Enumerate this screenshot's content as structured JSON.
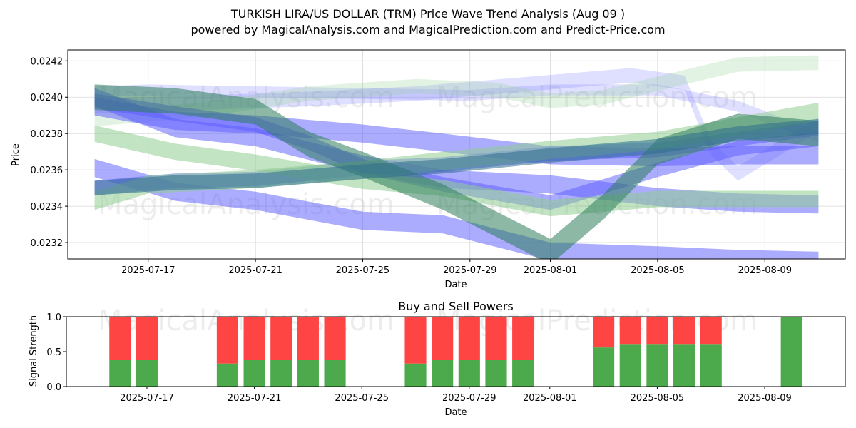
{
  "chart_data": [
    {
      "type": "area",
      "title": "TURKISH LIRA/US DOLLAR (TRM) Price Wave Trend Analysis (Aug 09 )",
      "subtitle": "powered by MagicalAnalysis.com and MagicalPrediction.com and Predict-Price.com",
      "xlabel": "Date",
      "ylabel": "Price",
      "x_tick_labels": [
        "2025-07-17",
        "2025-07-21",
        "2025-07-25",
        "2025-07-29",
        "2025-08-01",
        "2025-08-05",
        "2025-08-09"
      ],
      "y_tick_labels": [
        "0.0232",
        "0.0234",
        "0.0236",
        "0.0238",
        "0.0240",
        "0.0242"
      ],
      "xlim": [
        "2025-07-14",
        "2025-08-12"
      ],
      "ylim": [
        0.02311,
        0.02426
      ],
      "grid": true,
      "watermarks": [
        "MagicalAnalysis.com",
        "MagicalPrediction.com"
      ],
      "series": [
        {
          "color": "#8080ff",
          "opacity": 0.25,
          "band": 6e-05,
          "points": [
            [
              "2025-07-15",
              0.02403
            ],
            [
              "2025-07-17",
              0.02404
            ],
            [
              "2025-07-21",
              0.02403
            ],
            [
              "2025-07-25",
              0.02402
            ],
            [
              "2025-07-29",
              0.02401
            ],
            [
              "2025-08-01",
              0.02404
            ],
            [
              "2025-08-05",
              0.02404
            ],
            [
              "2025-08-08",
              0.02395
            ],
            [
              "2025-08-11",
              0.02378
            ]
          ]
        },
        {
          "color": "#8080ff",
          "opacity": 0.25,
          "band": 8e-05,
          "points": [
            [
              "2025-07-15",
              0.02395
            ],
            [
              "2025-07-19",
              0.02397
            ],
            [
              "2025-07-23",
              0.02399
            ],
            [
              "2025-07-27",
              0.02402
            ],
            [
              "2025-07-31",
              0.02407
            ],
            [
              "2025-08-04",
              0.02412
            ],
            [
              "2025-08-06",
              0.02408
            ],
            [
              "2025-08-07",
              0.02372
            ],
            [
              "2025-08-08",
              0.02358
            ],
            [
              "2025-08-11",
              0.02385
            ]
          ]
        },
        {
          "color": "#8fce8f",
          "opacity": 0.25,
          "band": 8e-05,
          "points": [
            [
              "2025-07-15",
              0.02388
            ],
            [
              "2025-07-19",
              0.02393
            ],
            [
              "2025-07-23",
              0.02402
            ],
            [
              "2025-07-27",
              0.02406
            ],
            [
              "2025-07-30",
              0.02404
            ],
            [
              "2025-08-01",
              0.02398
            ],
            [
              "2025-08-03",
              0.024
            ],
            [
              "2025-08-06",
              0.02411
            ],
            [
              "2025-08-08",
              0.02418
            ],
            [
              "2025-08-11",
              0.02419
            ]
          ]
        },
        {
          "color": "#5a5aff",
          "opacity": 0.5,
          "band": 0.0001,
          "points": [
            [
              "2025-07-15",
              0.024
            ],
            [
              "2025-07-18",
              0.02383
            ],
            [
              "2025-07-21",
              0.02378
            ],
            [
              "2025-07-25",
              0.02363
            ],
            [
              "2025-07-28",
              0.02355
            ],
            [
              "2025-08-01",
              0.02352
            ],
            [
              "2025-08-05",
              0.02345
            ],
            [
              "2025-08-08",
              0.02342
            ],
            [
              "2025-08-11",
              0.02341
            ]
          ]
        },
        {
          "color": "#5a5aff",
          "opacity": 0.5,
          "band": 0.0001,
          "points": [
            [
              "2025-07-15",
              0.02395
            ],
            [
              "2025-07-18",
              0.02387
            ],
            [
              "2025-07-21",
              0.02385
            ],
            [
              "2025-07-25",
              0.0238
            ],
            [
              "2025-07-28",
              0.02375
            ],
            [
              "2025-08-01",
              0.02368
            ],
            [
              "2025-08-05",
              0.02367
            ],
            [
              "2025-08-08",
              0.02368
            ],
            [
              "2025-08-11",
              0.02368
            ]
          ]
        },
        {
          "color": "#5a5aff",
          "opacity": 0.5,
          "band": 0.0001,
          "points": [
            [
              "2025-07-15",
              0.02361
            ],
            [
              "2025-07-18",
              0.02348
            ],
            [
              "2025-07-21",
              0.02343
            ],
            [
              "2025-07-25",
              0.02332
            ],
            [
              "2025-07-28",
              0.0233
            ],
            [
              "2025-08-01",
              0.02315
            ],
            [
              "2025-08-05",
              0.02313
            ],
            [
              "2025-08-08",
              0.02311
            ],
            [
              "2025-08-11",
              0.0231
            ]
          ]
        },
        {
          "color": "#5a5aff",
          "opacity": 0.5,
          "band": 8e-05,
          "points": [
            [
              "2025-07-15",
              0.02398
            ],
            [
              "2025-07-18",
              0.02391
            ],
            [
              "2025-07-21",
              0.02385
            ],
            [
              "2025-07-23",
              0.02375
            ],
            [
              "2025-07-25",
              0.02362
            ],
            [
              "2025-07-28",
              0.02352
            ],
            [
              "2025-08-01",
              0.02342
            ],
            [
              "2025-08-05",
              0.0236
            ],
            [
              "2025-08-08",
              0.02372
            ],
            [
              "2025-08-11",
              0.02377
            ]
          ]
        },
        {
          "color": "#5a5aff",
          "opacity": 0.5,
          "band": 8e-05,
          "points": [
            [
              "2025-07-15",
              0.0235
            ],
            [
              "2025-07-18",
              0.02354
            ],
            [
              "2025-07-21",
              0.02355
            ],
            [
              "2025-07-25",
              0.02361
            ],
            [
              "2025-07-28",
              0.02363
            ],
            [
              "2025-08-01",
              0.02369
            ],
            [
              "2025-08-05",
              0.02371
            ],
            [
              "2025-08-08",
              0.02377
            ],
            [
              "2025-08-11",
              0.02383
            ]
          ]
        },
        {
          "color": "#8fce8f",
          "opacity": 0.55,
          "band": 9e-05,
          "points": [
            [
              "2025-07-15",
              0.0238
            ],
            [
              "2025-07-18",
              0.0237
            ],
            [
              "2025-07-21",
              0.02364
            ],
            [
              "2025-07-25",
              0.02354
            ],
            [
              "2025-07-28",
              0.0235
            ],
            [
              "2025-08-01",
              0.02339
            ],
            [
              "2025-08-05",
              0.02344
            ],
            [
              "2025-08-08",
              0.02344
            ],
            [
              "2025-08-11",
              0.02344
            ]
          ]
        },
        {
          "color": "#8fce8f",
          "opacity": 0.55,
          "band": 0.0001,
          "points": [
            [
              "2025-07-15",
              0.02343
            ],
            [
              "2025-07-17",
              0.02352
            ],
            [
              "2025-07-21",
              0.02355
            ],
            [
              "2025-07-25",
              0.0236
            ],
            [
              "2025-07-28",
              0.02365
            ],
            [
              "2025-08-01",
              0.02371
            ],
            [
              "2025-08-05",
              0.02376
            ],
            [
              "2025-08-08",
              0.02384
            ],
            [
              "2025-08-11",
              0.02392
            ]
          ]
        },
        {
          "color": "#2e7d5b",
          "opacity": 0.55,
          "band": 0.00014,
          "points": [
            [
              "2025-07-15",
              0.024
            ],
            [
              "2025-07-18",
              0.02398
            ],
            [
              "2025-07-21",
              0.02392
            ],
            [
              "2025-07-23",
              0.02374
            ],
            [
              "2025-07-25",
              0.02363
            ],
            [
              "2025-07-28",
              0.02345
            ],
            [
              "2025-07-30",
              0.0233
            ],
            [
              "2025-08-01",
              0.02315
            ],
            [
              "2025-08-03",
              0.0234
            ],
            [
              "2025-08-05",
              0.0237
            ],
            [
              "2025-08-08",
              0.02384
            ],
            [
              "2025-08-11",
              0.0238
            ]
          ]
        },
        {
          "color": "#2e6e8e",
          "opacity": 0.55,
          "band": 8e-05,
          "points": [
            [
              "2025-07-15",
              0.0235
            ],
            [
              "2025-07-18",
              0.02353
            ],
            [
              "2025-07-21",
              0.02354
            ],
            [
              "2025-07-25",
              0.02359
            ],
            [
              "2025-07-28",
              0.02362
            ],
            [
              "2025-08-01",
              0.02368
            ],
            [
              "2025-08-05",
              0.02373
            ],
            [
              "2025-08-08",
              0.0238
            ],
            [
              "2025-08-11",
              0.02384
            ]
          ]
        }
      ]
    },
    {
      "type": "bar",
      "title": "Buy and Sell Powers",
      "xlabel": "Date",
      "ylabel": "Signal Strength",
      "x_tick_labels": [
        "2025-07-17",
        "2025-07-21",
        "2025-07-25",
        "2025-07-29",
        "2025-08-01",
        "2025-08-05",
        "2025-08-09"
      ],
      "y_tick_labels": [
        "0.0",
        "0.5",
        "1.0"
      ],
      "ylim": [
        0,
        1
      ],
      "xlim": [
        "2025-07-14",
        "2025-08-12"
      ],
      "watermarks": [
        "MagicalAnalysis.com",
        "MagicalPrediction.com"
      ],
      "series_colors": {
        "buy": "#4caa4c",
        "sell": "#ff4444"
      },
      "bars": [
        {
          "date": "2025-07-16",
          "buy": 0.38,
          "sell": 0.62
        },
        {
          "date": "2025-07-17",
          "buy": 0.38,
          "sell": 0.62
        },
        {
          "date": "2025-07-20",
          "buy": 0.33,
          "sell": 0.67
        },
        {
          "date": "2025-07-21",
          "buy": 0.38,
          "sell": 0.62
        },
        {
          "date": "2025-07-22",
          "buy": 0.38,
          "sell": 0.62
        },
        {
          "date": "2025-07-23",
          "buy": 0.38,
          "sell": 0.62
        },
        {
          "date": "2025-07-24",
          "buy": 0.38,
          "sell": 0.62
        },
        {
          "date": "2025-07-27",
          "buy": 0.33,
          "sell": 0.67
        },
        {
          "date": "2025-07-28",
          "buy": 0.38,
          "sell": 0.62
        },
        {
          "date": "2025-07-29",
          "buy": 0.38,
          "sell": 0.62
        },
        {
          "date": "2025-07-30",
          "buy": 0.38,
          "sell": 0.62
        },
        {
          "date": "2025-07-31",
          "buy": 0.38,
          "sell": 0.62
        },
        {
          "date": "2025-08-03",
          "buy": 0.56,
          "sell": 0.44
        },
        {
          "date": "2025-08-04",
          "buy": 0.61,
          "sell": 0.39
        },
        {
          "date": "2025-08-05",
          "buy": 0.61,
          "sell": 0.39
        },
        {
          "date": "2025-08-06",
          "buy": 0.61,
          "sell": 0.39
        },
        {
          "date": "2025-08-07",
          "buy": 0.61,
          "sell": 0.39
        },
        {
          "date": "2025-08-10",
          "buy": 1.0,
          "sell": 0.0
        }
      ]
    }
  ]
}
